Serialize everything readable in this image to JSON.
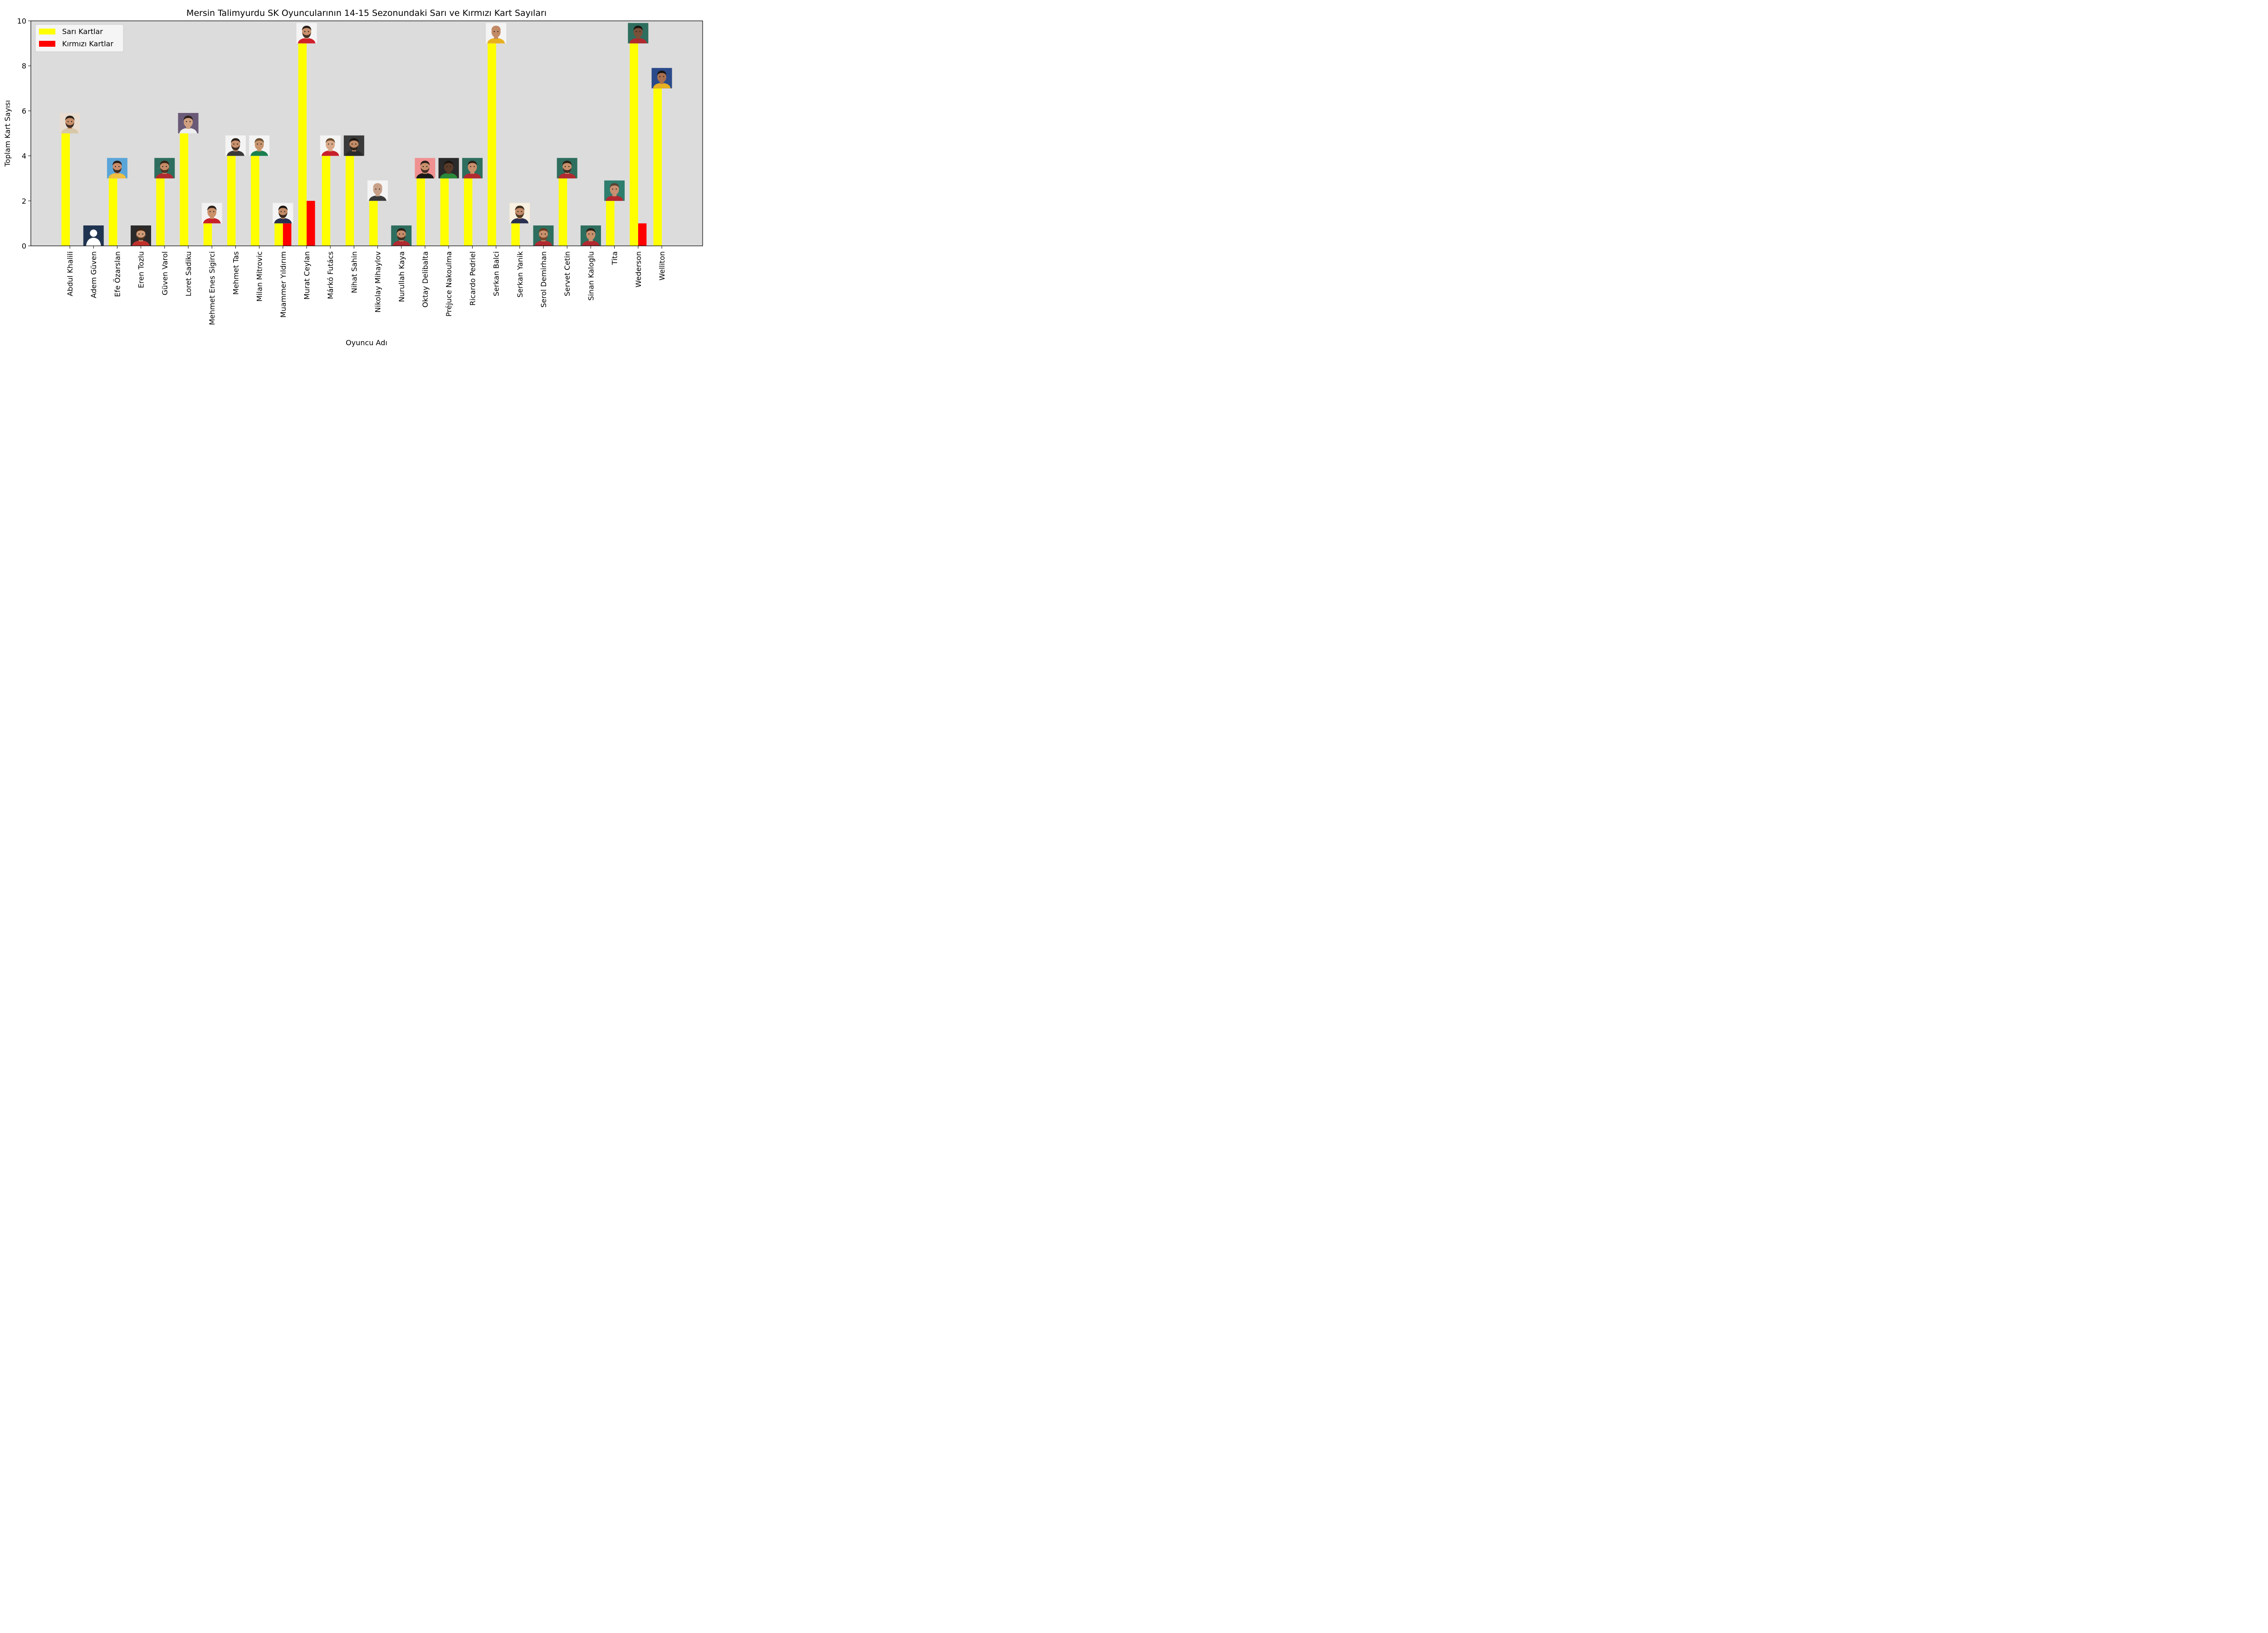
{
  "chart_data": {
    "type": "bar",
    "title": "Mersin Talimyurdu SK Oyuncularının 14-15 Sezonundaki Sarı ve Kırmızı Kart Sayıları",
    "xlabel": "Oyuncu Adı",
    "ylabel": "Toplam Kart Sayısı",
    "ylim": [
      0,
      10
    ],
    "yticks": [
      "0",
      "2",
      "4",
      "6",
      "8",
      "10"
    ],
    "grid": false,
    "legend_position": "top-left",
    "plot_background": "#dcdcdc",
    "categories": [
      "Abdul Khalili",
      "Adem Güven",
      "Efe Özarslan",
      "Eren Tozlu",
      "Güven Varol",
      "Loret Sadiku",
      "Mehmet Enes Sigirci",
      "Mehmet Tas",
      "Milan Mitrovic",
      "Muammer Yıldırım",
      "Murat Ceylan",
      "Márkó Futács",
      "Nihat Sahin",
      "Nikolay Mihaylov",
      "Nurullah Kaya",
      "Oktay Delibalta",
      "Préjuce Nakoulma",
      "Ricardo Pedriel",
      "Serkan Balci",
      "Serkan Yanik",
      "Serol Demirhan",
      "Servet Cetin",
      "Sinan Kaloglu",
      "Tita",
      "Wederson",
      "Welliton"
    ],
    "series": [
      {
        "name": "Sarı Kartlar",
        "color": "#ffff00",
        "values": [
          5,
          0,
          3,
          0,
          3,
          5,
          1,
          4,
          4,
          1,
          9,
          4,
          4,
          2,
          0,
          3,
          3,
          3,
          9,
          1,
          0,
          3,
          0,
          2,
          9,
          7
        ]
      },
      {
        "name": "Kırmızı Kartlar",
        "color": "#ff0000",
        "values": [
          0,
          0,
          0,
          0,
          0,
          0,
          0,
          0,
          0,
          1,
          2,
          0,
          0,
          0,
          0,
          0,
          0,
          0,
          0,
          0,
          0,
          0,
          0,
          0,
          1,
          0
        ]
      }
    ],
    "player_photos": [
      {
        "bg": "#e8ddd0",
        "skin": "#c9906a",
        "hair": "#2a1f18",
        "shirt": "#d8c8a8",
        "beard": true
      },
      {
        "bg": "#1f3450",
        "skin": "#ffffff",
        "hair": "#ffffff",
        "shirt": "#ffffff",
        "beard": false,
        "silhouette": true
      },
      {
        "bg": "#5aa5d8",
        "skin": "#c98d6b",
        "hair": "#2b1d14",
        "shirt": "#f0c040",
        "beard": true
      },
      {
        "bg": "#2a2a2a",
        "skin": "#d09a76",
        "hair": "#3a2415",
        "shirt": "#c0302a",
        "beard": true
      },
      {
        "bg": "#2e6e5e",
        "skin": "#c68c68",
        "hair": "#3a2415",
        "shirt": "#b02a30",
        "beard": true
      },
      {
        "bg": "#6a5a78",
        "skin": "#d0a080",
        "hair": "#2a1f18",
        "shirt": "#eeeeee",
        "beard": false
      },
      {
        "bg": "#f2f2f2",
        "skin": "#c9906a",
        "hair": "#2a1f18",
        "shirt": "#c8202a",
        "beard": false
      },
      {
        "bg": "#f4f4f4",
        "skin": "#c8906c",
        "hair": "#2a1f18",
        "shirt": "#3a3a3a",
        "beard": true
      },
      {
        "bg": "#f4f4f4",
        "skin": "#c8946e",
        "hair": "#6a5030",
        "shirt": "#1a8050",
        "beard": false
      },
      {
        "bg": "#f4f4f4",
        "skin": "#c28a66",
        "hair": "#1a1410",
        "shirt": "#2a3050",
        "beard": true
      },
      {
        "bg": "#f4f4f4",
        "skin": "#c8906c",
        "hair": "#2a1f18",
        "shirt": "#d0202a",
        "beard": true
      },
      {
        "bg": "#f4f4f4",
        "skin": "#d8a888",
        "hair": "#6a4a2a",
        "shirt": "#c8202a",
        "beard": false
      },
      {
        "bg": "#3a3a3a",
        "skin": "#c28a66",
        "hair": "#1a1410",
        "shirt": "#2a2a2a",
        "beard": true
      },
      {
        "bg": "#f4f4f4",
        "skin": "#c8a088",
        "hair": "#c8a088",
        "shirt": "#3a3a3a",
        "beard": false
      },
      {
        "bg": "#2e6e5e",
        "skin": "#c68c68",
        "hair": "#2a1f18",
        "shirt": "#b02a30",
        "beard": true
      },
      {
        "bg": "#f09090",
        "skin": "#c8906c",
        "hair": "#2a1f18",
        "shirt": "#1a1a1a",
        "beard": true
      },
      {
        "bg": "#2a2a2a",
        "skin": "#5a3a28",
        "hair": "#1a1410",
        "shirt": "#2a8a3a",
        "beard": false
      },
      {
        "bg": "#2e6e5e",
        "skin": "#c8906c",
        "hair": "#2a1f18",
        "shirt": "#b02a30",
        "beard": false
      },
      {
        "bg": "#f4f4f4",
        "skin": "#c28a66",
        "hair": "#c28a66",
        "shirt": "#e8b020",
        "beard": false
      },
      {
        "bg": "#f8f0e0",
        "skin": "#c28a66",
        "hair": "#3a2a1a",
        "shirt": "#2a3050",
        "beard": true
      },
      {
        "bg": "#2e6e5e",
        "skin": "#c8906c",
        "hair": "#6a3a20",
        "shirt": "#b02a30",
        "beard": true
      },
      {
        "bg": "#2e6e5e",
        "skin": "#c8906c",
        "hair": "#2a1f18",
        "shirt": "#b02a30",
        "beard": true
      },
      {
        "bg": "#2e6e5e",
        "skin": "#c8906c",
        "hair": "#2a1f18",
        "shirt": "#b02a30",
        "beard": false
      },
      {
        "bg": "#2e7e6e",
        "skin": "#c89070",
        "hair": "#5a4030",
        "shirt": "#b02a30",
        "beard": false
      },
      {
        "bg": "#2e6e5e",
        "skin": "#7a5038",
        "hair": "#1a1410",
        "shirt": "#b02a30",
        "beard": false
      },
      {
        "bg": "#2a4a8a",
        "skin": "#a87050",
        "hair": "#1a1410",
        "shirt": "#e8b020",
        "beard": false
      }
    ]
  }
}
